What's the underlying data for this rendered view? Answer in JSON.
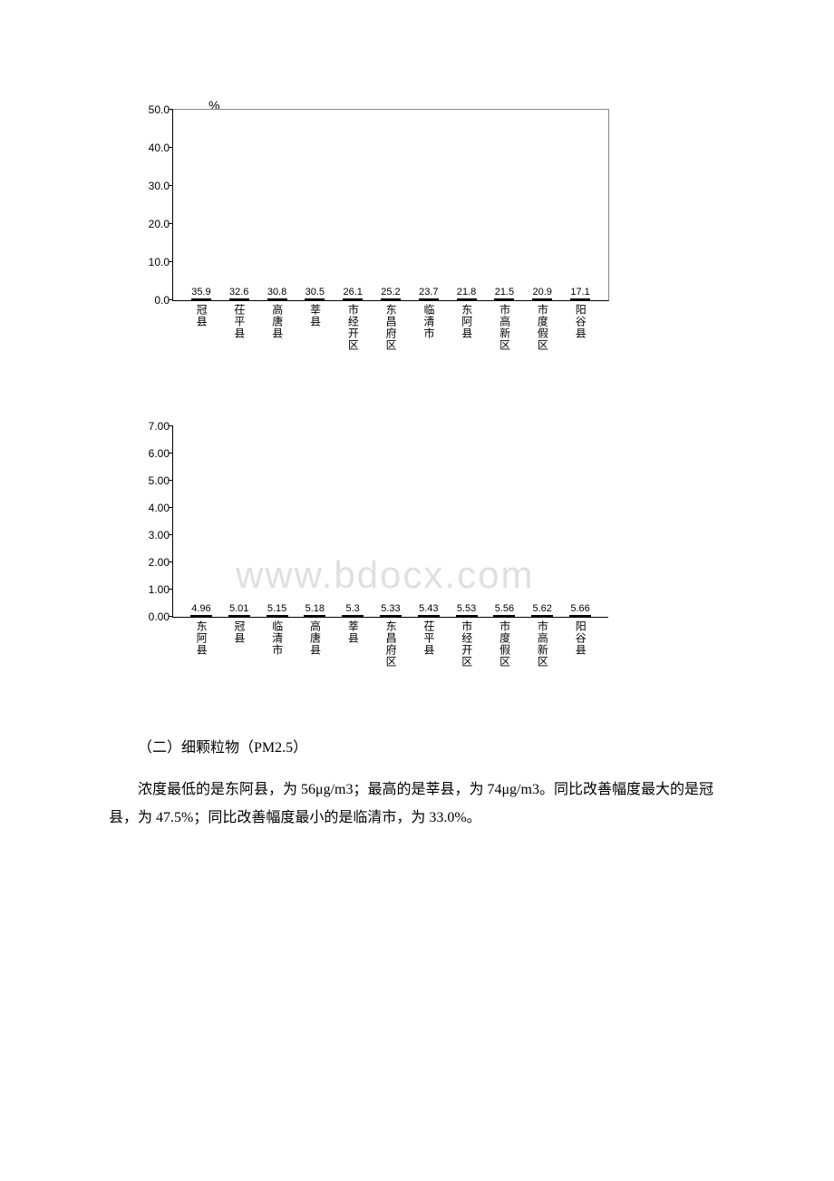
{
  "chart1": {
    "type": "bar",
    "unit_label": "%",
    "ylim": [
      0.0,
      50.0
    ],
    "ytick_step": 10.0,
    "yticks": [
      "0.0",
      "10.0",
      "20.0",
      "30.0",
      "40.0",
      "50.0"
    ],
    "bar_color": "#2e9b3a",
    "border_color": "#000000",
    "categories": [
      "冠县",
      "茌平县",
      "高唐县",
      "莘县",
      "市经开区",
      "东昌府区",
      "临清市",
      "东阿县",
      "市高新区",
      "市度假区",
      "阳谷县"
    ],
    "values": [
      35.9,
      32.6,
      30.8,
      30.5,
      26.1,
      25.2,
      23.7,
      21.8,
      21.5,
      20.9,
      17.1
    ],
    "value_labels": [
      "35.9",
      "32.6",
      "30.8",
      "30.5",
      "26.1",
      "25.2",
      "23.7",
      "21.8",
      "21.5",
      "20.9",
      "17.1"
    ]
  },
  "chart2": {
    "type": "bar",
    "ylim": [
      0.0,
      7.0
    ],
    "ytick_step": 1.0,
    "yticks": [
      "0.00",
      "1.00",
      "2.00",
      "3.00",
      "4.00",
      "5.00",
      "6.00",
      "7.00"
    ],
    "bar_color": "#5ff2f2",
    "border_color": "#000000",
    "categories": [
      "东阿县",
      "冠县",
      "临清市",
      "高唐县",
      "莘县",
      "东昌府区",
      "茌平县",
      "市经开区",
      "市度假区",
      "市高新区",
      "阳谷县"
    ],
    "values": [
      4.96,
      5.01,
      5.15,
      5.18,
      5.3,
      5.33,
      5.43,
      5.53,
      5.56,
      5.62,
      5.66
    ],
    "value_labels": [
      "4.96",
      "5.01",
      "5.15",
      "5.18",
      "5.3",
      "5.33",
      "5.43",
      "5.53",
      "5.56",
      "5.62",
      "5.66"
    ]
  },
  "watermark": "www.bdocx.com",
  "section_title": "（二）细颗粒物（PM2.5）",
  "paragraph": "浓度最低的是东阿县，为 56μg/m3；最高的是莘县，为 74μg/m3。同比改善幅度最大的是冠县，为 47.5%；同比改善幅度最小的是临清市，为 33.0%。"
}
